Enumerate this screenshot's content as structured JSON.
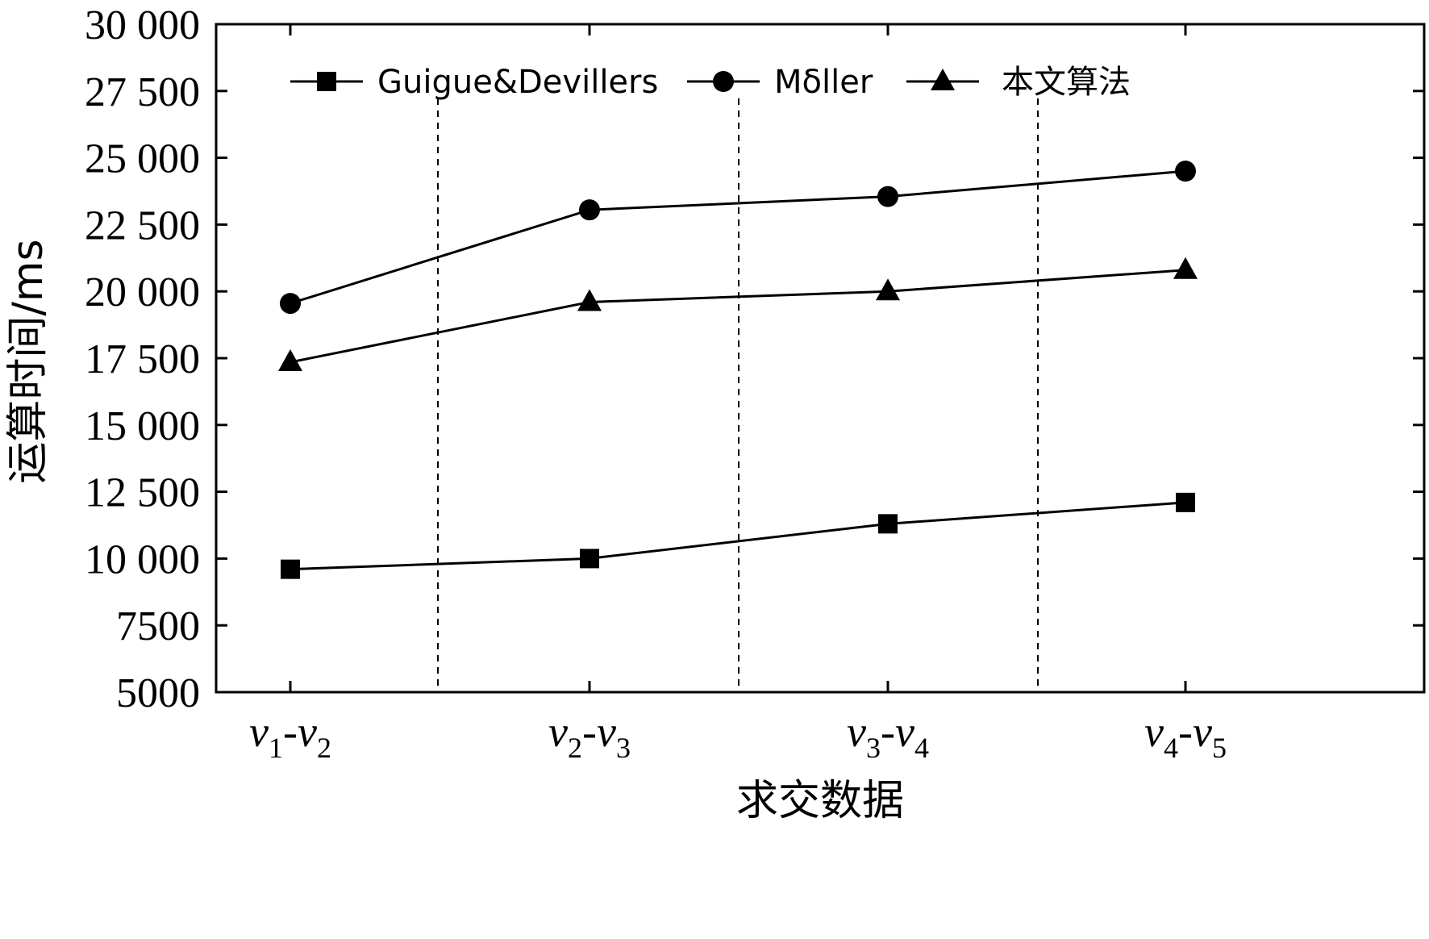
{
  "chart_data": {
    "type": "line",
    "categories": [
      "v1-v2",
      "v2-v3",
      "v3-v4",
      "v4-v5"
    ],
    "category_labels": [
      {
        "a": "v",
        "a_sub": "1",
        "b": "v",
        "b_sub": "2"
      },
      {
        "a": "v",
        "a_sub": "2",
        "b": "v",
        "b_sub": "3"
      },
      {
        "a": "v",
        "a_sub": "3",
        "b": "v",
        "b_sub": "4"
      },
      {
        "a": "v",
        "a_sub": "4",
        "b": "v",
        "b_sub": "5"
      }
    ],
    "series": [
      {
        "name": "Guigue&Devillers",
        "marker": "square",
        "values": [
          9600,
          10000,
          11300,
          12100
        ]
      },
      {
        "name": "Mδller",
        "marker": "circle",
        "values": [
          19550,
          23050,
          23550,
          24500
        ]
      },
      {
        "name": "本文算法",
        "marker": "triangle",
        "values": [
          17350,
          19600,
          20000,
          20800
        ]
      }
    ],
    "xlabel": "求交数据",
    "ylabel": "运算时间/ms",
    "ylim": [
      5000,
      30000
    ],
    "yticks": [
      5000,
      7500,
      10000,
      12500,
      15000,
      17500,
      20000,
      22500,
      25000,
      27500,
      30000
    ],
    "ytick_labels": [
      "5000",
      "7500",
      "10 000",
      "12 500",
      "15 000",
      "17 500",
      "20 000",
      "22 500",
      "25 000",
      "27 500",
      "30 000"
    ],
    "grid": "vertical dashed separators between categories",
    "legend_position": "top",
    "colors": {
      "line": "#000000",
      "background": "#ffffff"
    }
  }
}
